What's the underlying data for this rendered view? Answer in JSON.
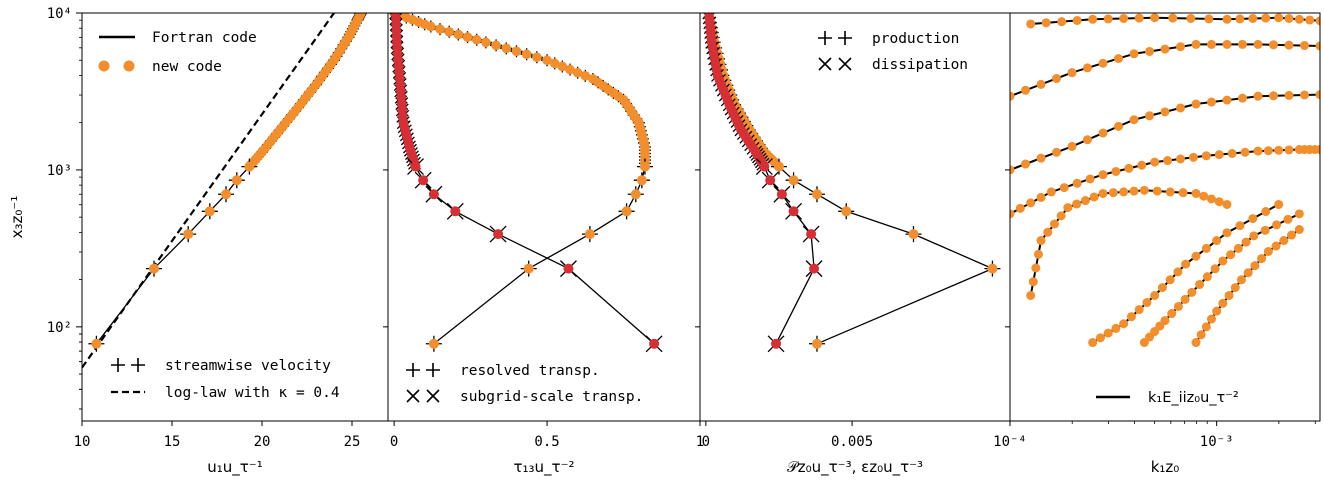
{
  "colors": {
    "orange": "#f28e2b",
    "red": "#d62f35",
    "black": "#000000"
  },
  "chart_data": [
    {
      "type": "line",
      "panel": "velocity",
      "xlim": [
        10,
        27
      ],
      "ylim_log10": [
        1.4,
        4
      ],
      "y_scale": "log",
      "xticks": [
        "10",
        "15",
        "20",
        "25"
      ],
      "xtick_values": [
        10,
        15,
        20,
        25
      ],
      "yticks": [
        "10²",
        "10³",
        "10⁴"
      ],
      "xlabel": "u₁u_τ⁻¹",
      "ylabel": "x₃z₀⁻¹",
      "legend_top": [
        {
          "label": "Fortran code"
        },
        {
          "label": "new code"
        }
      ],
      "legend_bottom": [
        {
          "label": "streamwise velocity"
        },
        {
          "label": "log-law with κ = 0.4"
        }
      ],
      "series": [
        {
          "name": "streamwise velocity",
          "x": [
            10.8,
            14.0,
            15.9,
            17.1,
            18.0,
            18.6,
            19.3,
            20.0,
            21.0,
            22.0,
            23.0,
            24.0,
            24.8,
            25.3,
            25.5
          ],
          "y": [
            78,
            235,
            390,
            545,
            700,
            860,
            1050,
            1300,
            1800,
            2500,
            3500,
            5000,
            7000,
            9000,
            10000
          ]
        },
        {
          "name": "log-law with κ = 0.4",
          "x": [
            10.0,
            24.0
          ],
          "y": [
            55,
            10000
          ]
        }
      ]
    },
    {
      "type": "line",
      "panel": "stress",
      "xlim": [
        -0.02,
        1.0
      ],
      "xticks": [
        "0",
        "0.5",
        "1"
      ],
      "xtick_values": [
        0,
        0.5,
        1
      ],
      "xlabel": "τ₁₃u_τ⁻²",
      "legend_bottom": [
        {
          "label": "resolved transp."
        },
        {
          "label": "subgrid-scale transp."
        }
      ],
      "series": [
        {
          "name": "resolved transp.",
          "x": [
            0.13,
            0.44,
            0.64,
            0.76,
            0.79,
            0.81,
            0.82,
            0.82,
            0.8,
            0.75,
            0.65,
            0.5,
            0.3,
            0.12,
            0.0
          ],
          "y": [
            78,
            235,
            390,
            545,
            700,
            860,
            1050,
            1400,
            2000,
            2800,
            3800,
            5000,
            6500,
            8200,
            10000
          ]
        },
        {
          "name": "subgrid-scale transp.",
          "x": [
            0.85,
            0.57,
            0.34,
            0.2,
            0.13,
            0.095,
            0.07,
            0.05,
            0.03,
            0.02,
            0.01,
            0.005
          ],
          "y": [
            78,
            235,
            390,
            545,
            700,
            860,
            1050,
            1400,
            2000,
            3500,
            6000,
            10000
          ]
        }
      ]
    },
    {
      "type": "line",
      "panel": "budget",
      "xlim": [
        -0.0002,
        0.0104
      ],
      "xticks": [
        "0",
        "0.005"
      ],
      "xtick_values": [
        0,
        0.005
      ],
      "xlabel": "𝒫z₀u_τ⁻³, εz₀u_τ⁻³",
      "legend_top": [
        {
          "label": "production"
        },
        {
          "label": "dissipation"
        }
      ],
      "series": [
        {
          "name": "production",
          "x": [
            0.0038,
            0.0098,
            0.0071,
            0.0048,
            0.0038,
            0.003,
            0.0025,
            0.002,
            0.0015,
            0.001,
            0.0006,
            0.0003,
            0.0001
          ],
          "y": [
            78,
            235,
            390,
            545,
            700,
            860,
            1050,
            1300,
            1800,
            2600,
            4000,
            6500,
            10000
          ]
        },
        {
          "name": "dissipation",
          "x": [
            0.0024,
            0.0037,
            0.0036,
            0.003,
            0.0026,
            0.0022,
            0.002,
            0.0017,
            0.0012,
            0.0008,
            0.0004,
            0.0002,
            0.0001
          ],
          "y": [
            78,
            235,
            390,
            545,
            700,
            860,
            1050,
            1300,
            1800,
            2600,
            4000,
            6500,
            10000
          ]
        }
      ]
    },
    {
      "type": "line",
      "panel": "spectra",
      "x_scale": "log",
      "xlim_log10": [
        -4,
        -2.5
      ],
      "xticks": [
        "10⁻⁴",
        "10⁻³"
      ],
      "xlabel": "k₁z₀",
      "legend_bottom": [
        {
          "label": "k₁E_iiz₀u_τ⁻²"
        }
      ],
      "contours": [
        {
          "x": [
            -3.9,
            -3.6,
            -3.3,
            -2.95,
            -2.7,
            -2.5
          ],
          "y": [
            3.93,
            3.96,
            3.97,
            3.96,
            3.97,
            3.95
          ]
        },
        {
          "x": [
            -4.0,
            -3.7,
            -3.4,
            -3.1,
            -2.8,
            -2.5
          ],
          "y": [
            3.47,
            3.62,
            3.74,
            3.8,
            3.8,
            3.79
          ]
        },
        {
          "x": [
            -4.0,
            -3.7,
            -3.4,
            -3.1,
            -2.8,
            -2.5
          ],
          "y": [
            3.0,
            3.15,
            3.32,
            3.42,
            3.47,
            3.48
          ]
        },
        {
          "x": [
            -4.0,
            -3.8,
            -3.55,
            -3.3,
            -3.05,
            -2.8,
            -2.6,
            -2.5
          ],
          "y": [
            2.72,
            2.86,
            2.97,
            3.05,
            3.09,
            3.12,
            3.13,
            3.13
          ]
        },
        {
          "x": [
            -3.9,
            -3.85,
            -3.72,
            -3.55,
            -3.35,
            -3.1,
            -2.95
          ],
          "y": [
            2.2,
            2.55,
            2.76,
            2.85,
            2.87,
            2.85,
            2.78
          ]
        },
        {
          "x": [
            -3.6,
            -3.45,
            -3.3,
            -3.15,
            -2.95,
            -2.7
          ],
          "y": [
            1.9,
            2.02,
            2.2,
            2.4,
            2.6,
            2.78
          ]
        },
        {
          "x": [
            -3.35,
            -3.25,
            -3.12,
            -2.97,
            -2.82,
            -2.6
          ],
          "y": [
            1.9,
            2.04,
            2.22,
            2.42,
            2.58,
            2.72
          ]
        },
        {
          "x": [
            -3.1,
            -3.0,
            -2.88,
            -2.75,
            -2.6
          ],
          "y": [
            1.9,
            2.1,
            2.3,
            2.48,
            2.62
          ]
        }
      ]
    }
  ]
}
